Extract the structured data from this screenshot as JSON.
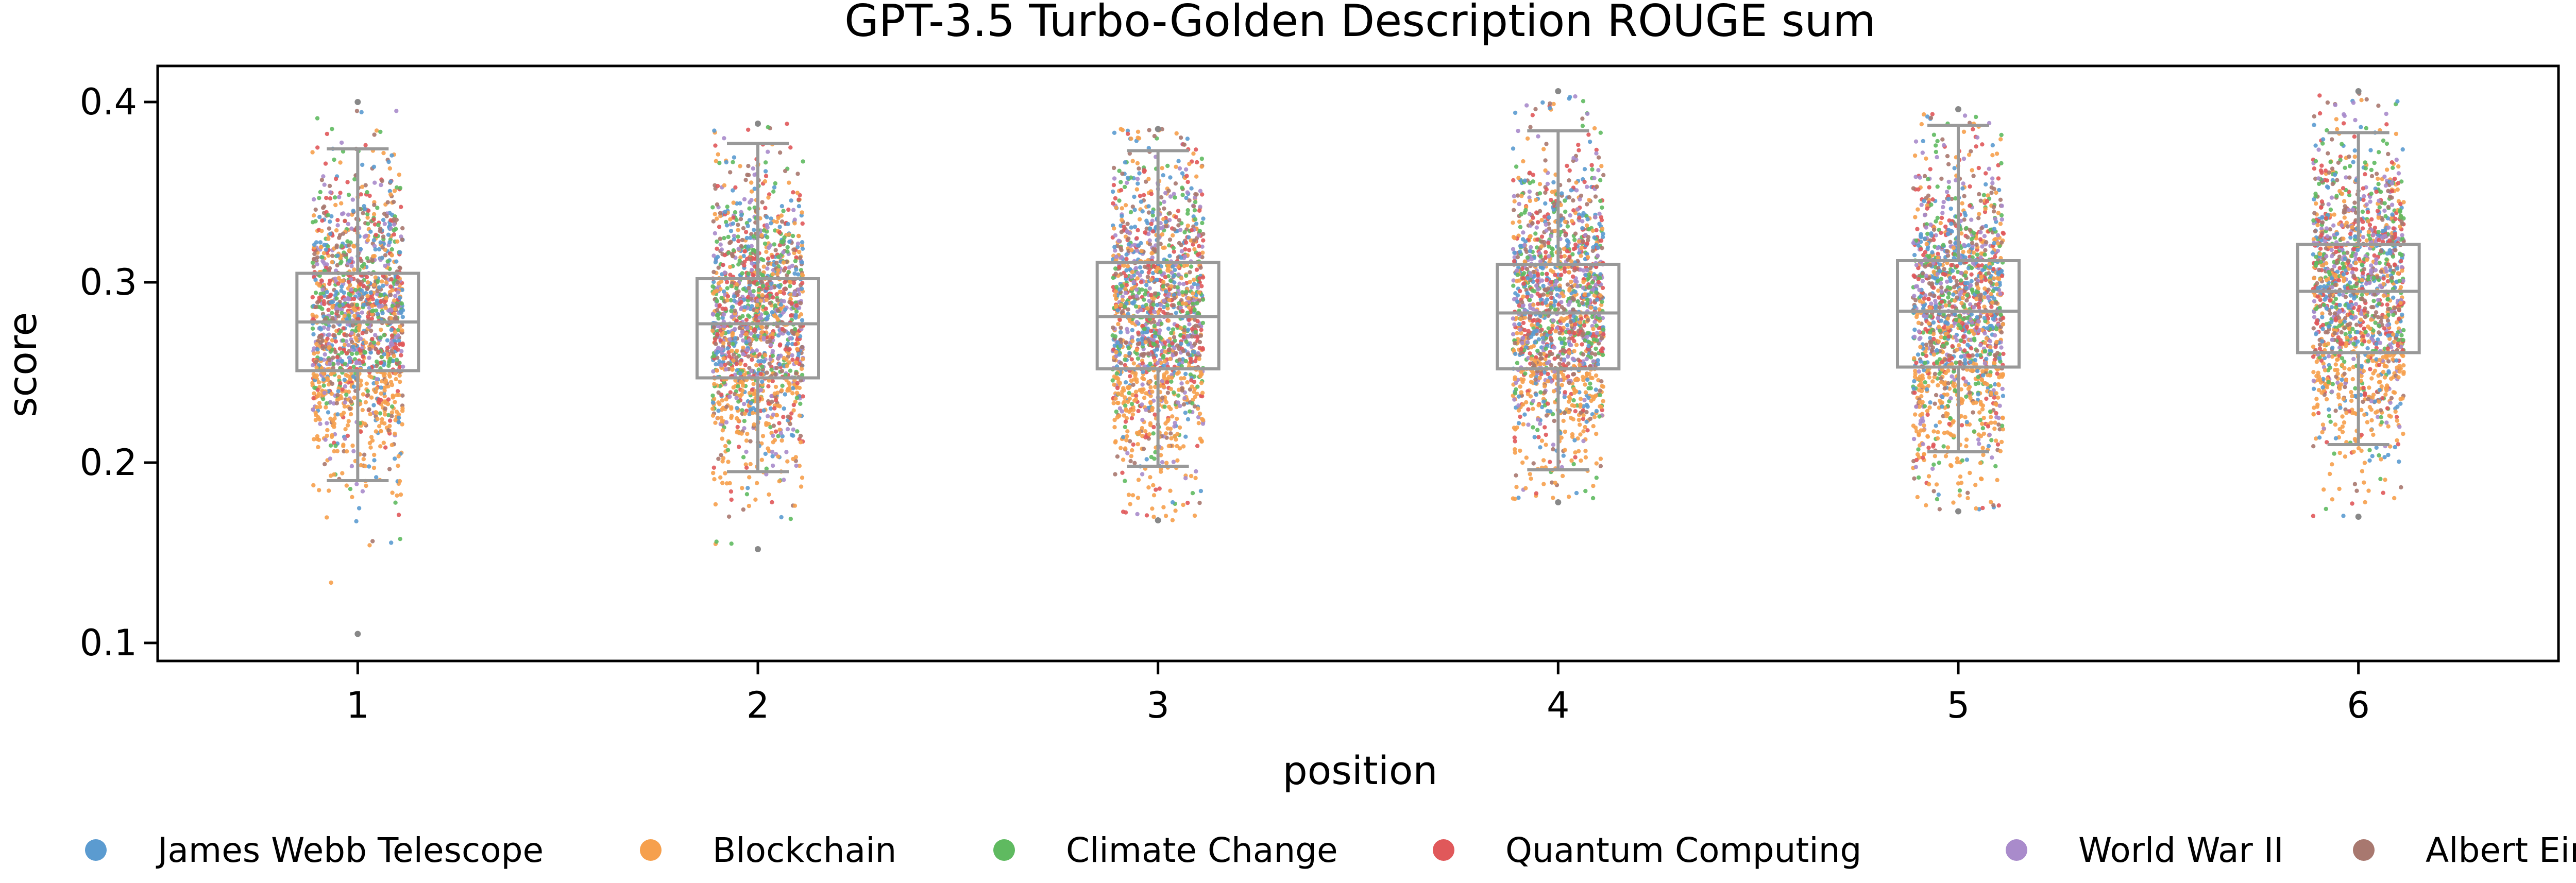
{
  "chart_data": {
    "type": "box-strip",
    "title": "GPT-3.5 Turbo-Golden Description ROUGE sum",
    "xlabel": "position",
    "ylabel": "score",
    "categories": [
      "1",
      "2",
      "3",
      "4",
      "5",
      "6"
    ],
    "ylim": [
      0.09,
      0.42
    ],
    "yticks": [
      "0.1",
      "0.2",
      "0.3",
      "0.4"
    ],
    "grid": false,
    "legend_position": "bottom",
    "box_color": "#999999",
    "boxes": [
      {
        "position": "1",
        "q1": 0.251,
        "median": 0.278,
        "q3": 0.305,
        "whisker_low": 0.19,
        "whisker_high": 0.374,
        "min": 0.105,
        "max": 0.4
      },
      {
        "position": "2",
        "q1": 0.247,
        "median": 0.277,
        "q3": 0.302,
        "whisker_low": 0.195,
        "whisker_high": 0.377,
        "min": 0.152,
        "max": 0.388
      },
      {
        "position": "3",
        "q1": 0.252,
        "median": 0.281,
        "q3": 0.311,
        "whisker_low": 0.198,
        "whisker_high": 0.373,
        "min": 0.168,
        "max": 0.385
      },
      {
        "position": "4",
        "q1": 0.252,
        "median": 0.283,
        "q3": 0.31,
        "whisker_low": 0.196,
        "whisker_high": 0.384,
        "min": 0.178,
        "max": 0.406
      },
      {
        "position": "5",
        "q1": 0.253,
        "median": 0.284,
        "q3": 0.312,
        "whisker_low": 0.206,
        "whisker_high": 0.387,
        "min": 0.173,
        "max": 0.396
      },
      {
        "position": "6",
        "q1": 0.261,
        "median": 0.295,
        "q3": 0.321,
        "whisker_low": 0.21,
        "whisker_high": 0.383,
        "min": 0.17,
        "max": 0.406
      }
    ],
    "series": [
      {
        "name": "James Webb Telescope",
        "color": "#5b9bd0"
      },
      {
        "name": "Blockchain",
        "color": "#f6a04d"
      },
      {
        "name": "Climate Change",
        "color": "#5fba60"
      },
      {
        "name": "Quantum Computing",
        "color": "#e0585a"
      },
      {
        "name": "World War II",
        "color": "#a98bcb"
      },
      {
        "name": "Albert Einstein",
        "color": "#a8786f"
      }
    ]
  }
}
